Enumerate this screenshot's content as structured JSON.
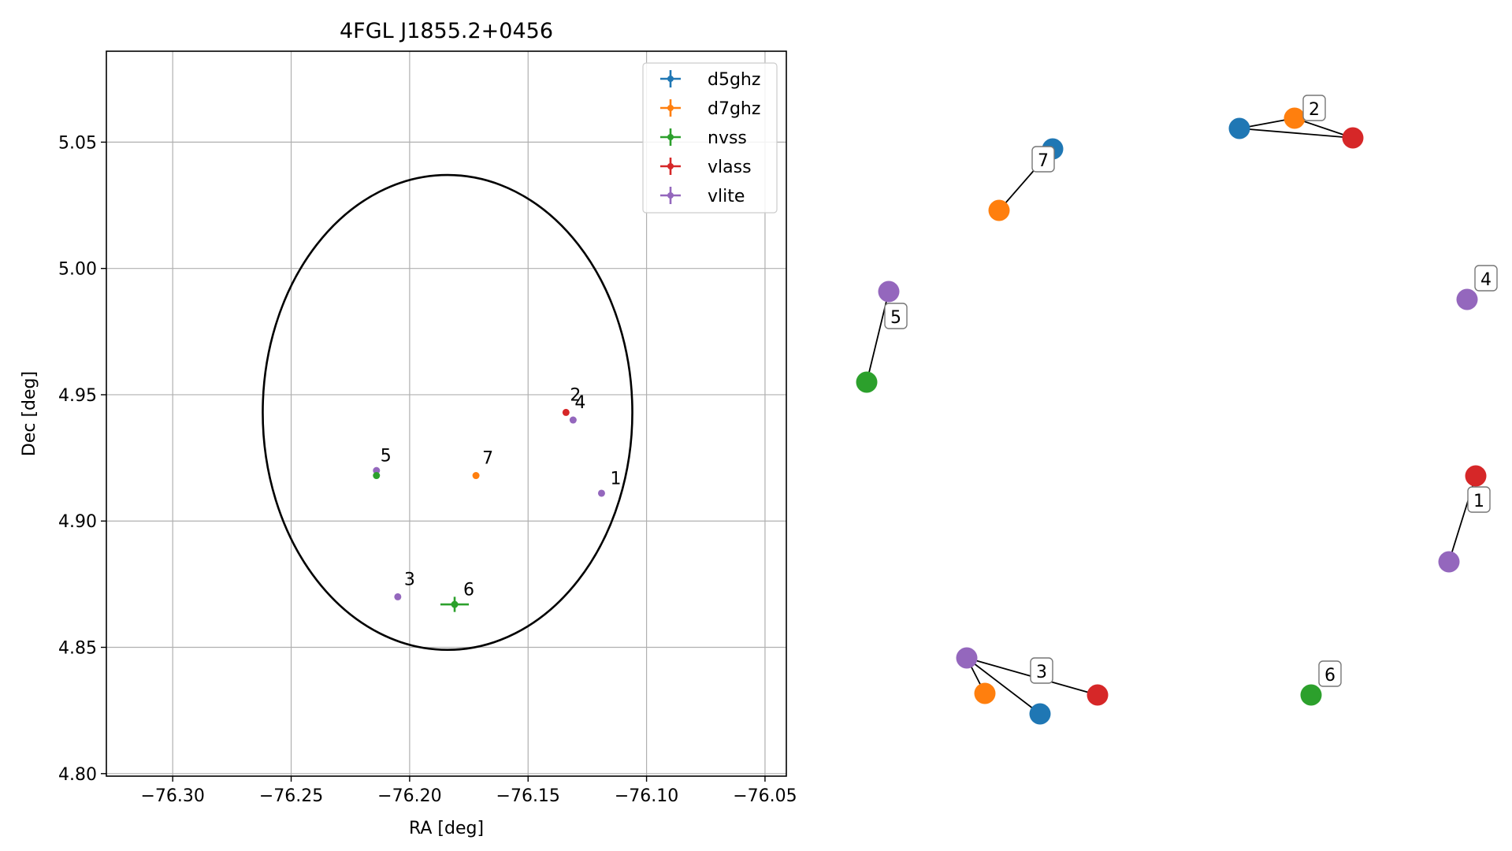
{
  "chart_data": [
    {
      "type": "scatter",
      "title": "4FGL J1855.2+0456",
      "xlabel": "RA [deg]",
      "ylabel": "Dec [deg]",
      "xlim": [
        -76.328,
        -76.041
      ],
      "ylim": [
        4.799,
        5.086
      ],
      "xticks": [
        -76.3,
        -76.25,
        -76.2,
        -76.15,
        -76.1,
        -76.05
      ],
      "xtick_labels": [
        "−76.30",
        "−76.25",
        "−76.20",
        "−76.15",
        "−76.10",
        "−76.05"
      ],
      "yticks": [
        4.8,
        4.85,
        4.9,
        4.95,
        5.0,
        5.05
      ],
      "ytick_labels": [
        "4.80",
        "4.85",
        "4.90",
        "4.95",
        "5.00",
        "5.05"
      ],
      "grid": true,
      "legend_position": "top-right",
      "legend": [
        {
          "name": "d5ghz",
          "color": "#1f77b4"
        },
        {
          "name": "d7ghz",
          "color": "#ff7f0e"
        },
        {
          "name": "nvss",
          "color": "#2ca02c"
        },
        {
          "name": "vlass",
          "color": "#d62728"
        },
        {
          "name": "vlite",
          "color": "#9467bd"
        }
      ],
      "ellipse": {
        "center": [
          -76.184,
          4.943
        ],
        "ra_halfwidth": 0.078,
        "dec_halfwidth": 0.094,
        "color": "#000000"
      },
      "points": [
        {
          "survey": "vlass",
          "ra": -76.134,
          "dec": 4.943,
          "color": "#d62728"
        },
        {
          "survey": "vlite",
          "ra": -76.131,
          "dec": 4.94,
          "color": "#9467bd"
        },
        {
          "survey": "vlite",
          "ra": -76.214,
          "dec": 4.92,
          "color": "#9467bd"
        },
        {
          "survey": "nvss",
          "ra": -76.214,
          "dec": 4.918,
          "color": "#2ca02c"
        },
        {
          "survey": "d7ghz",
          "ra": -76.172,
          "dec": 4.918,
          "color": "#ff7f0e"
        },
        {
          "survey": "vlite",
          "ra": -76.119,
          "dec": 4.911,
          "color": "#9467bd"
        },
        {
          "survey": "vlite",
          "ra": -76.205,
          "dec": 4.87,
          "color": "#9467bd"
        },
        {
          "survey": "nvss",
          "ra": -76.181,
          "dec": 4.867,
          "color": "#2ca02c",
          "ra_err": 0.006,
          "dec_err": 0.003
        }
      ],
      "point_labels": [
        {
          "text": "2",
          "ra": -76.133,
          "dec": 4.947
        },
        {
          "text": "4",
          "ra": -76.131,
          "dec": 4.944
        },
        {
          "text": "5",
          "ra": -76.213,
          "dec": 4.923
        },
        {
          "text": "7",
          "ra": -76.17,
          "dec": 4.922
        },
        {
          "text": "1",
          "ra": -76.116,
          "dec": 4.914
        },
        {
          "text": "3",
          "ra": -76.203,
          "dec": 4.874
        },
        {
          "text": "6",
          "ra": -76.178,
          "dec": 4.87
        }
      ]
    },
    {
      "type": "network",
      "nodes": [
        {
          "color": "#1f77b4"
        },
        {
          "color": "#ff7f0e"
        },
        {
          "color": "#1f77b4"
        },
        {
          "color": "#ff7f0e"
        },
        {
          "color": "#d62728"
        },
        {
          "color": "#9467bd"
        },
        {
          "color": "#2ca02c"
        },
        {
          "color": "#9467bd"
        },
        {
          "color": "#d62728"
        },
        {
          "color": "#9467bd"
        },
        {
          "color": "#9467bd"
        },
        {
          "color": "#ff7f0e"
        },
        {
          "color": "#1f77b4"
        },
        {
          "color": "#d62728"
        },
        {
          "color": "#2ca02c"
        }
      ],
      "edges": [
        [
          0,
          1
        ],
        [
          2,
          3
        ],
        [
          3,
          4
        ],
        [
          2,
          4
        ],
        [
          5,
          6
        ],
        [
          8,
          9
        ],
        [
          10,
          11
        ],
        [
          10,
          12
        ],
        [
          10,
          13
        ]
      ],
      "group_labels": [
        "7",
        "2",
        "5",
        "4",
        "1",
        "3",
        "6"
      ]
    }
  ]
}
